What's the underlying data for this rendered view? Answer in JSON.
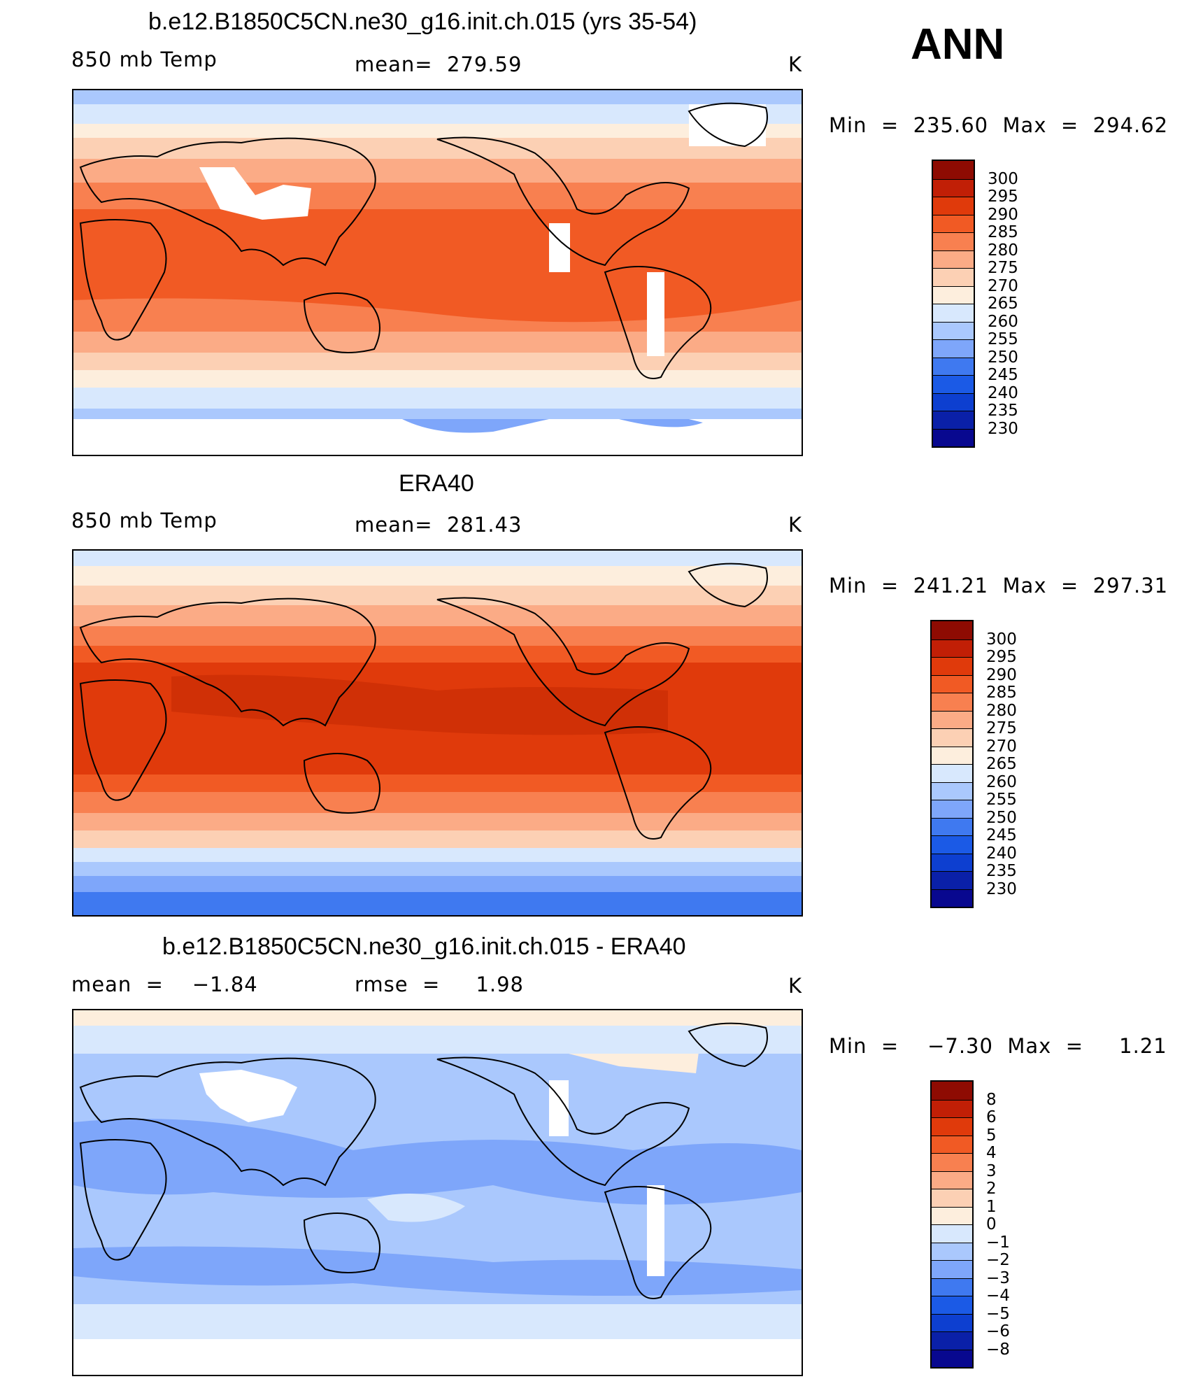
{
  "season": "ANN",
  "colors": {
    "temp_scale": [
      "#08088f",
      "#0a20a8",
      "#0d3fd0",
      "#1b5ae6",
      "#3f79f0",
      "#7ea6fa",
      "#aac8fd",
      "#d8e8fd",
      "#fdeedd",
      "#fcd0b4",
      "#fbab86",
      "#f88050",
      "#f15a24",
      "#e03a0b",
      "#c11f06",
      "#8e0b02"
    ],
    "diff_scale": [
      "#08088f",
      "#0a20a8",
      "#0d3fd0",
      "#1b5ae6",
      "#3f79f0",
      "#7ea6fa",
      "#aac8fd",
      "#d8e8fd",
      "#fdeedd",
      "#fcd0b4",
      "#fbab86",
      "#f88050",
      "#f15a24",
      "#e03a0b",
      "#c11f06",
      "#8e0b02"
    ],
    "land_white": "#ffffff",
    "coast": "#000000"
  },
  "panels": [
    {
      "title": "b.e12.B1850C5CN.ne30_g16.init.ch.015 (yrs 35-54)",
      "left_label": "850 mb Temp",
      "center_label": "mean=  279.59",
      "units": "K",
      "minmax": "Min  =  235.60  Max  =  294.62",
      "ticks": [
        "300",
        "295",
        "290",
        "285",
        "280",
        "275",
        "270",
        "265",
        "260",
        "255",
        "250",
        "245",
        "240",
        "235",
        "230"
      ]
    },
    {
      "title": "ERA40",
      "left_label": "850 mb Temp",
      "center_label": "mean=  281.43",
      "units": "K",
      "minmax": "Min  =  241.21  Max  =  297.31",
      "ticks": [
        "300",
        "295",
        "290",
        "285",
        "280",
        "275",
        "270",
        "265",
        "260",
        "255",
        "250",
        "245",
        "240",
        "235",
        "230"
      ]
    },
    {
      "title": "b.e12.B1850C5CN.ne30_g16.init.ch.015 - ERA40",
      "left_label": "mean  =    −1.84",
      "center_label": "rmse  =     1.98",
      "units": "K",
      "minmax": "Min  =    −7.30  Max  =     1.21",
      "ticks": [
        "8",
        "6",
        "5",
        "4",
        "3",
        "2",
        "1",
        "0",
        "−1",
        "−2",
        "−3",
        "−4",
        "−5",
        "−6",
        "−8"
      ]
    }
  ]
}
